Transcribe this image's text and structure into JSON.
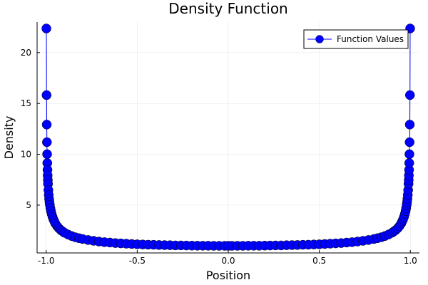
{
  "chart_data": {
    "type": "scatter",
    "title": "Density Function",
    "xlabel": "Position",
    "ylabel": "Density",
    "xlim": [
      -1.05,
      1.05
    ],
    "ylim": [
      0.3,
      23.0
    ],
    "xticks": [
      -1.0,
      -0.5,
      0.0,
      0.5,
      1.0
    ],
    "xtick_labels": [
      "-1.0",
      "-0.5",
      "0.0",
      "0.5",
      "1.0"
    ],
    "yticks": [
      5,
      10,
      15,
      20
    ],
    "ytick_labels": [
      "5",
      "10",
      "15",
      "20"
    ],
    "grid": true,
    "legend_position": "top-right",
    "series": [
      {
        "name": "Function Values",
        "color": "#0000ff",
        "marker": "circle",
        "line": true,
        "x": [
          -0.999,
          -0.998,
          -0.997,
          -0.996,
          -0.995,
          -0.994,
          -0.993,
          -0.992,
          -0.991,
          -0.99,
          -0.988,
          -0.986,
          -0.984,
          -0.982,
          -0.98,
          -0.977,
          -0.974,
          -0.97,
          -0.965,
          -0.96,
          -0.955,
          -0.95,
          -0.94,
          -0.93,
          -0.92,
          -0.91,
          -0.9,
          -0.88,
          -0.86,
          -0.84,
          -0.82,
          -0.8,
          -0.77,
          -0.74,
          -0.71,
          -0.68,
          -0.65,
          -0.62,
          -0.59,
          -0.56,
          -0.53,
          -0.5,
          -0.47,
          -0.44,
          -0.41,
          -0.38,
          -0.35,
          -0.32,
          -0.29,
          -0.26,
          -0.23,
          -0.2,
          -0.17,
          -0.14,
          -0.11,
          -0.08,
          -0.05,
          -0.02,
          0.0,
          0.02,
          0.05,
          0.08,
          0.11,
          0.14,
          0.17,
          0.2,
          0.23,
          0.26,
          0.29,
          0.32,
          0.35,
          0.38,
          0.41,
          0.44,
          0.47,
          0.5,
          0.53,
          0.56,
          0.59,
          0.62,
          0.65,
          0.68,
          0.71,
          0.74,
          0.77,
          0.8,
          0.82,
          0.84,
          0.86,
          0.88,
          0.9,
          0.91,
          0.92,
          0.93,
          0.94,
          0.95,
          0.955,
          0.96,
          0.965,
          0.97,
          0.974,
          0.977,
          0.98,
          0.982,
          0.984,
          0.986,
          0.988,
          0.99,
          0.991,
          0.992,
          0.993,
          0.994,
          0.995,
          0.996,
          0.997,
          0.998,
          0.999
        ],
        "y": [
          22.37,
          15.82,
          12.92,
          11.19,
          10.01,
          9.14,
          8.47,
          7.92,
          7.47,
          7.09,
          6.48,
          6.0,
          5.61,
          5.29,
          5.03,
          4.7,
          4.42,
          4.13,
          3.84,
          3.59,
          3.4,
          3.2,
          2.93,
          2.72,
          2.55,
          2.42,
          2.29,
          2.11,
          1.96,
          1.84,
          1.75,
          1.67,
          1.57,
          1.49,
          1.42,
          1.36,
          1.32,
          1.27,
          1.24,
          1.21,
          1.18,
          1.15,
          1.13,
          1.11,
          1.1,
          1.08,
          1.07,
          1.06,
          1.04,
          1.04,
          1.03,
          1.02,
          1.01,
          1.01,
          1.01,
          1.0,
          1.0,
          1.0,
          1.0,
          1.0,
          1.0,
          1.0,
          1.01,
          1.01,
          1.01,
          1.02,
          1.03,
          1.04,
          1.04,
          1.06,
          1.07,
          1.08,
          1.1,
          1.11,
          1.13,
          1.15,
          1.18,
          1.21,
          1.24,
          1.27,
          1.32,
          1.36,
          1.42,
          1.49,
          1.57,
          1.67,
          1.75,
          1.84,
          1.96,
          2.11,
          2.29,
          2.42,
          2.55,
          2.72,
          2.93,
          3.2,
          3.4,
          3.59,
          3.84,
          4.13,
          4.42,
          4.7,
          5.03,
          5.29,
          5.61,
          6.0,
          6.48,
          7.09,
          7.47,
          7.92,
          8.47,
          9.14,
          10.01,
          11.19,
          12.92,
          15.82,
          22.37
        ]
      }
    ]
  }
}
